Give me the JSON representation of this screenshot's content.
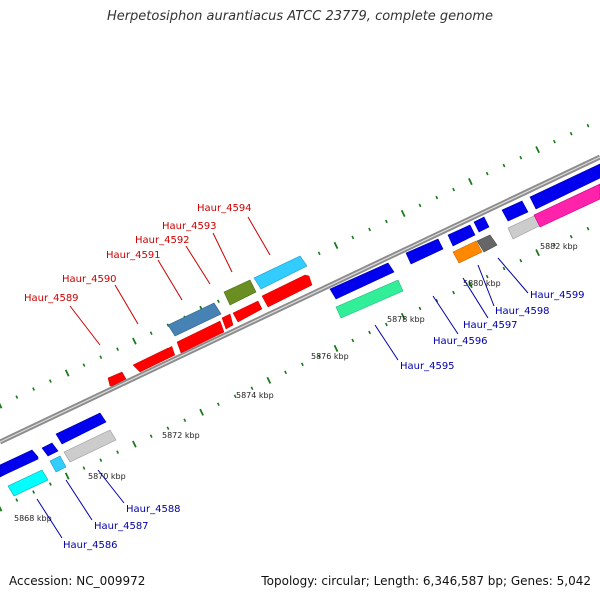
{
  "title": "Herpetosiphon aurantiacus ATCC 23779, complete genome",
  "footer": {
    "accession": "Accession: NC_009972",
    "summary": "Topology: circular; Length: 6,346,587 bp; Genes: 5,042"
  },
  "colors": {
    "backbone": "#888888",
    "tick": "#1a7a1a",
    "red_label": "#cc0000",
    "blue_label": "#0000aa",
    "gene_red": "#ff0000",
    "gene_blue": "#0000ee",
    "gene_cyan": "#33ccff",
    "gene_green": "#33ee99",
    "gene_steel": "#4682b4",
    "gene_olive": "#6b8e23",
    "gene_orange": "#ff8800",
    "gene_gray": "#666666",
    "gene_lightgray": "#cccccc",
    "gene_magenta": "#ff22aa",
    "gene_aqua": "#00ffff"
  },
  "diagram": {
    "kbp_ticks": [
      "5868 kbp",
      "5870 kbp",
      "5872 kbp",
      "5874 kbp",
      "5876 kbp",
      "5878 kbp",
      "5880 kbp",
      "5882 kbp"
    ],
    "genes_top": [
      {
        "name": "Haur_4589",
        "color": "gene_red"
      },
      {
        "name": "Haur_4590",
        "color": "gene_red"
      },
      {
        "name": "Haur_4591",
        "color": "gene_steel"
      },
      {
        "name": "Haur_4592",
        "color": "gene_red"
      },
      {
        "name": "Haur_4593",
        "color": "gene_olive"
      },
      {
        "name": "Haur_4594",
        "color": "gene_cyan"
      }
    ],
    "genes_bottom": [
      {
        "name": "Haur_4586",
        "color": "gene_aqua"
      },
      {
        "name": "Haur_4587",
        "color": "gene_blue"
      },
      {
        "name": "Haur_4588",
        "color": "gene_lightgray"
      },
      {
        "name": "Haur_4595",
        "color": "gene_green"
      },
      {
        "name": "Haur_4596",
        "color": "gene_blue"
      },
      {
        "name": "Haur_4597",
        "color": "gene_orange"
      },
      {
        "name": "Haur_4598",
        "color": "gene_gray"
      },
      {
        "name": "Haur_4599",
        "color": "gene_magenta"
      }
    ]
  }
}
